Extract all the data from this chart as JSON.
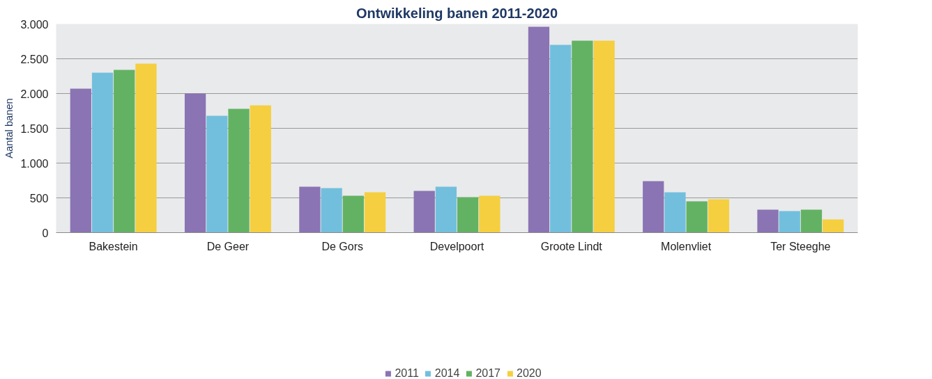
{
  "chart_data": {
    "type": "bar",
    "title": "Ontwikkeling banen 2011-2020",
    "ylabel": "Aantal banen",
    "categories": [
      "Bakestein",
      "De Geer",
      "De Gors",
      "Develpoort",
      "Groote Lindt",
      "Molenvliet",
      "Ter Steeghe"
    ],
    "series": [
      {
        "name": "2011",
        "color": "#8a74b3",
        "values": [
          2070,
          2000,
          660,
          600,
          2960,
          740,
          330
        ]
      },
      {
        "name": "2014",
        "color": "#72bfdd",
        "values": [
          2300,
          1680,
          640,
          660,
          2700,
          580,
          310
        ]
      },
      {
        "name": "2017",
        "color": "#63b263",
        "values": [
          2340,
          1780,
          530,
          510,
          2760,
          450,
          330
        ]
      },
      {
        "name": "2020",
        "color": "#f5cf3f",
        "values": [
          2430,
          1830,
          580,
          530,
          2760,
          480,
          190
        ]
      }
    ],
    "ylim": [
      0,
      3000
    ],
    "yticks": [
      {
        "value": 0,
        "label": "0"
      },
      {
        "value": 500,
        "label": "500"
      },
      {
        "value": 1000,
        "label": "1.000"
      },
      {
        "value": 1500,
        "label": "1.500"
      },
      {
        "value": 2000,
        "label": "2.000"
      },
      {
        "value": 2500,
        "label": "2.500"
      },
      {
        "value": 3000,
        "label": "3.000"
      }
    ],
    "grid": "y",
    "legend": "bottom"
  }
}
